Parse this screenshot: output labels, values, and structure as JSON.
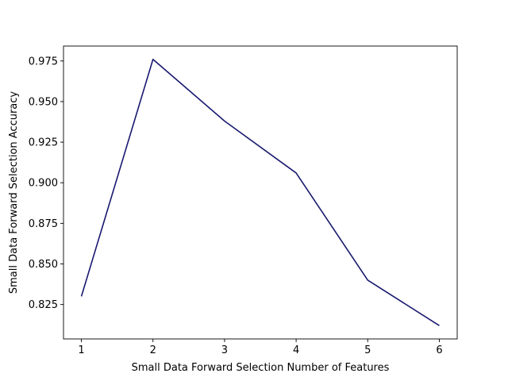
{
  "chart_data": {
    "type": "line",
    "title": "",
    "xlabel": "Small Data Forward Selection Number of Features",
    "ylabel": "Small Data Forward Selection Accuracy",
    "x": [
      1,
      2,
      3,
      4,
      5,
      6
    ],
    "series": [
      {
        "values": [
          0.83,
          0.976,
          0.938,
          0.906,
          0.84,
          0.812
        ],
        "color": "#191970"
      }
    ],
    "xticks": [
      1,
      2,
      3,
      4,
      5,
      6
    ],
    "xtick_labels": [
      "1",
      "2",
      "3",
      "4",
      "5",
      "6"
    ],
    "yticks": [
      0.825,
      0.85,
      0.875,
      0.9,
      0.925,
      0.95,
      0.975
    ],
    "ytick_labels": [
      "0.825",
      "0.850",
      "0.875",
      "0.900",
      "0.925",
      "0.950",
      "0.975"
    ],
    "xlim": [
      0.75,
      6.25
    ],
    "ylim": [
      0.8038,
      0.9842
    ],
    "grid": false,
    "legend": "none"
  }
}
